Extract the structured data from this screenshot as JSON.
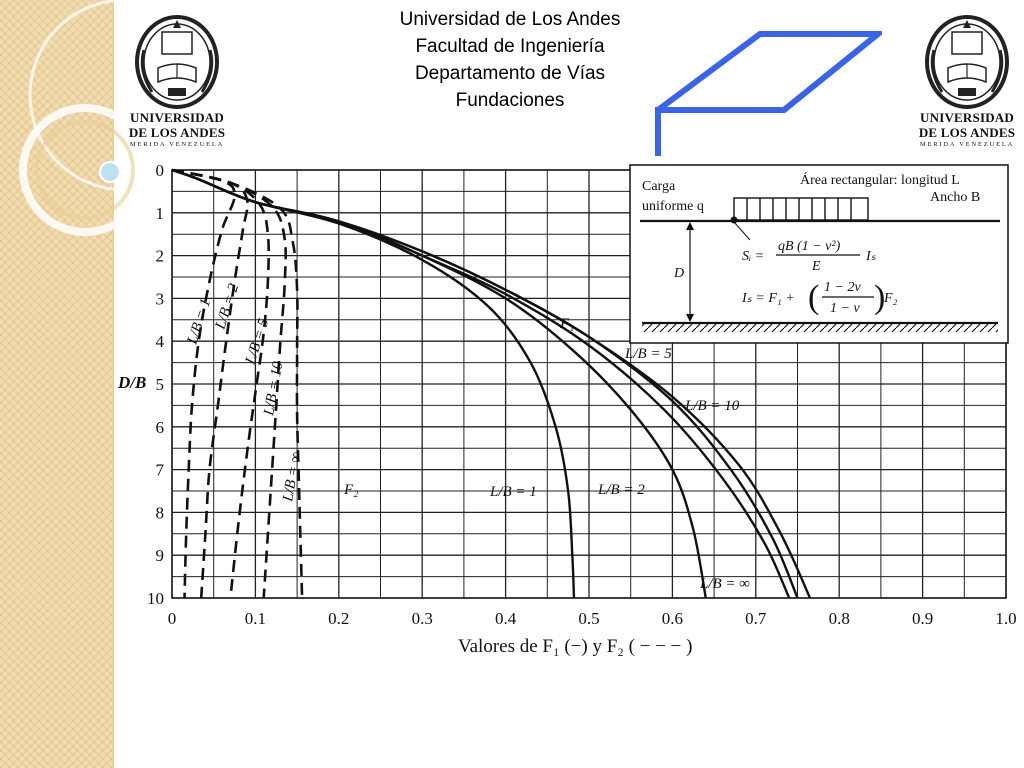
{
  "header": {
    "line1": "Universidad de Los Andes",
    "line2": "Facultad de Ingeniería",
    "line3": "Departamento de Vías",
    "line4": "Fundaciones"
  },
  "logo": {
    "line1": "UNIVERSIDAD",
    "line2": "DE LOS ANDES",
    "line3": "MERIDA VENEZUELA"
  },
  "colors": {
    "accent": "#3b63e6",
    "side_panel": "#f2ddb0",
    "ink": "#111111"
  },
  "chart_data": {
    "type": "line",
    "xlabel": "Valores de F₁ (−) y F₂ ( − − − )",
    "ylabel": "D/B",
    "xlim": [
      0,
      1.0
    ],
    "ylim": [
      0,
      10
    ],
    "y_inverted": true,
    "x_ticks": [
      "0",
      "0.1",
      "0.2",
      "0.3",
      "0.4",
      "0.5",
      "0.6",
      "0.7",
      "0.8",
      "0.9",
      "1.0"
    ],
    "y_ticks": [
      "0",
      "1",
      "2",
      "3",
      "4",
      "5",
      "6",
      "7",
      "8",
      "9",
      "10"
    ],
    "grid": true,
    "series_F1": [
      {
        "name": "L/B = 1",
        "style": "solid",
        "points": [
          [
            0,
            0
          ],
          [
            0.03,
            0.2
          ],
          [
            0.1,
            0.75
          ],
          [
            0.2,
            1.25
          ],
          [
            0.3,
            2.1
          ],
          [
            0.38,
            3.2
          ],
          [
            0.43,
            4.5
          ],
          [
            0.46,
            6.0
          ],
          [
            0.475,
            7.5
          ],
          [
            0.48,
            9.0
          ],
          [
            0.482,
            10
          ]
        ]
      },
      {
        "name": "L/B = 2",
        "style": "solid",
        "points": [
          [
            0,
            0
          ],
          [
            0.03,
            0.2
          ],
          [
            0.1,
            0.75
          ],
          [
            0.2,
            1.2
          ],
          [
            0.3,
            2.0
          ],
          [
            0.4,
            3.0
          ],
          [
            0.48,
            4.2
          ],
          [
            0.55,
            5.6
          ],
          [
            0.6,
            7.0
          ],
          [
            0.625,
            8.4
          ],
          [
            0.64,
            10
          ]
        ]
      },
      {
        "name": "L/B = 5",
        "style": "solid",
        "points": [
          [
            0,
            0
          ],
          [
            0.03,
            0.2
          ],
          [
            0.1,
            0.75
          ],
          [
            0.2,
            1.2
          ],
          [
            0.3,
            2.0
          ],
          [
            0.4,
            2.9
          ],
          [
            0.5,
            4.1
          ],
          [
            0.59,
            5.6
          ],
          [
            0.66,
            7.2
          ],
          [
            0.71,
            8.7
          ],
          [
            0.74,
            10
          ]
        ]
      },
      {
        "name": "L/B = 10",
        "style": "solid",
        "points": [
          [
            0,
            0
          ],
          [
            0.03,
            0.2
          ],
          [
            0.1,
            0.75
          ],
          [
            0.2,
            1.2
          ],
          [
            0.3,
            1.9
          ],
          [
            0.4,
            2.8
          ],
          [
            0.5,
            3.9
          ],
          [
            0.6,
            5.3
          ],
          [
            0.68,
            6.9
          ],
          [
            0.73,
            8.5
          ],
          [
            0.765,
            10
          ]
        ]
      },
      {
        "name": "L/B = ∞",
        "style": "solid",
        "points": [
          [
            0,
            0
          ],
          [
            0.03,
            0.2
          ],
          [
            0.1,
            0.75
          ],
          [
            0.2,
            1.2
          ],
          [
            0.3,
            1.9
          ],
          [
            0.4,
            2.8
          ],
          [
            0.5,
            3.9
          ],
          [
            0.6,
            5.4
          ],
          [
            0.67,
            7.0
          ],
          [
            0.72,
            8.6
          ],
          [
            0.75,
            10
          ]
        ]
      }
    ],
    "series_F2": [
      {
        "name": "L/B = 1",
        "style": "dashed",
        "points": [
          [
            0,
            0
          ],
          [
            0.06,
            0.25
          ],
          [
            0.075,
            0.6
          ],
          [
            0.06,
            1.4
          ],
          [
            0.045,
            2.6
          ],
          [
            0.032,
            4.0
          ],
          [
            0.024,
            5.5
          ],
          [
            0.02,
            7.0
          ],
          [
            0.017,
            8.5
          ],
          [
            0.015,
            10
          ]
        ]
      },
      {
        "name": "L/B = 2",
        "style": "dashed",
        "points": [
          [
            0,
            0
          ],
          [
            0.07,
            0.3
          ],
          [
            0.09,
            0.7
          ],
          [
            0.085,
            1.4
          ],
          [
            0.075,
            2.6
          ],
          [
            0.065,
            4.0
          ],
          [
            0.055,
            5.5
          ],
          [
            0.045,
            7.0
          ],
          [
            0.04,
            8.5
          ],
          [
            0.035,
            10
          ]
        ]
      },
      {
        "name": "L/B = 5",
        "style": "dashed",
        "points": [
          [
            0,
            0
          ],
          [
            0.07,
            0.3
          ],
          [
            0.105,
            0.8
          ],
          [
            0.115,
            1.5
          ],
          [
            0.115,
            2.6
          ],
          [
            0.11,
            3.8
          ],
          [
            0.1,
            5.2
          ],
          [
            0.09,
            6.6
          ],
          [
            0.08,
            8.2
          ],
          [
            0.07,
            10
          ]
        ]
      },
      {
        "name": "L/B = 10",
        "style": "dashed",
        "points": [
          [
            0,
            0
          ],
          [
            0.07,
            0.3
          ],
          [
            0.12,
            0.85
          ],
          [
            0.135,
            1.6
          ],
          [
            0.135,
            2.7
          ],
          [
            0.13,
            4.0
          ],
          [
            0.125,
            5.5
          ],
          [
            0.12,
            7.0
          ],
          [
            0.115,
            8.5
          ],
          [
            0.11,
            10
          ]
        ]
      },
      {
        "name": "L/B = ∞",
        "style": "dashed",
        "points": [
          [
            0,
            0
          ],
          [
            0.07,
            0.3
          ],
          [
            0.13,
            0.9
          ],
          [
            0.145,
            1.7
          ],
          [
            0.15,
            2.8
          ],
          [
            0.15,
            4.2
          ],
          [
            0.15,
            5.7
          ],
          [
            0.152,
            7.2
          ],
          [
            0.154,
            8.6
          ],
          [
            0.156,
            10
          ]
        ]
      }
    ],
    "curve_labels_F2": [
      "L/B = 1",
      "L/B = 2",
      "L/B = 5",
      "L/B = 10",
      "L/B = ∞"
    ],
    "curve_labels_F1": [
      "L/B = 5",
      "L/B = 10",
      "L/B = 1",
      "L/B = 2",
      "L/B = ∞"
    ],
    "annotations": {
      "F1": "F₁",
      "F2": "F₂"
    },
    "inset": {
      "carga": "Carga",
      "uniforme": "uniforme q",
      "area": "Área rectangular: longitud L",
      "ancho": "Ancho B",
      "d_label": "D",
      "si_label": "Sᵢ =",
      "formula1_num": "qB (1 − ν²)",
      "formula1_den": "E",
      "formula1_tail": "Iₛ",
      "formula2_lhs": "Iₛ = F₁ +",
      "formula2_num": "1 − 2ν",
      "formula2_den": "1 − ν",
      "formula2_tail": "F₂"
    }
  }
}
